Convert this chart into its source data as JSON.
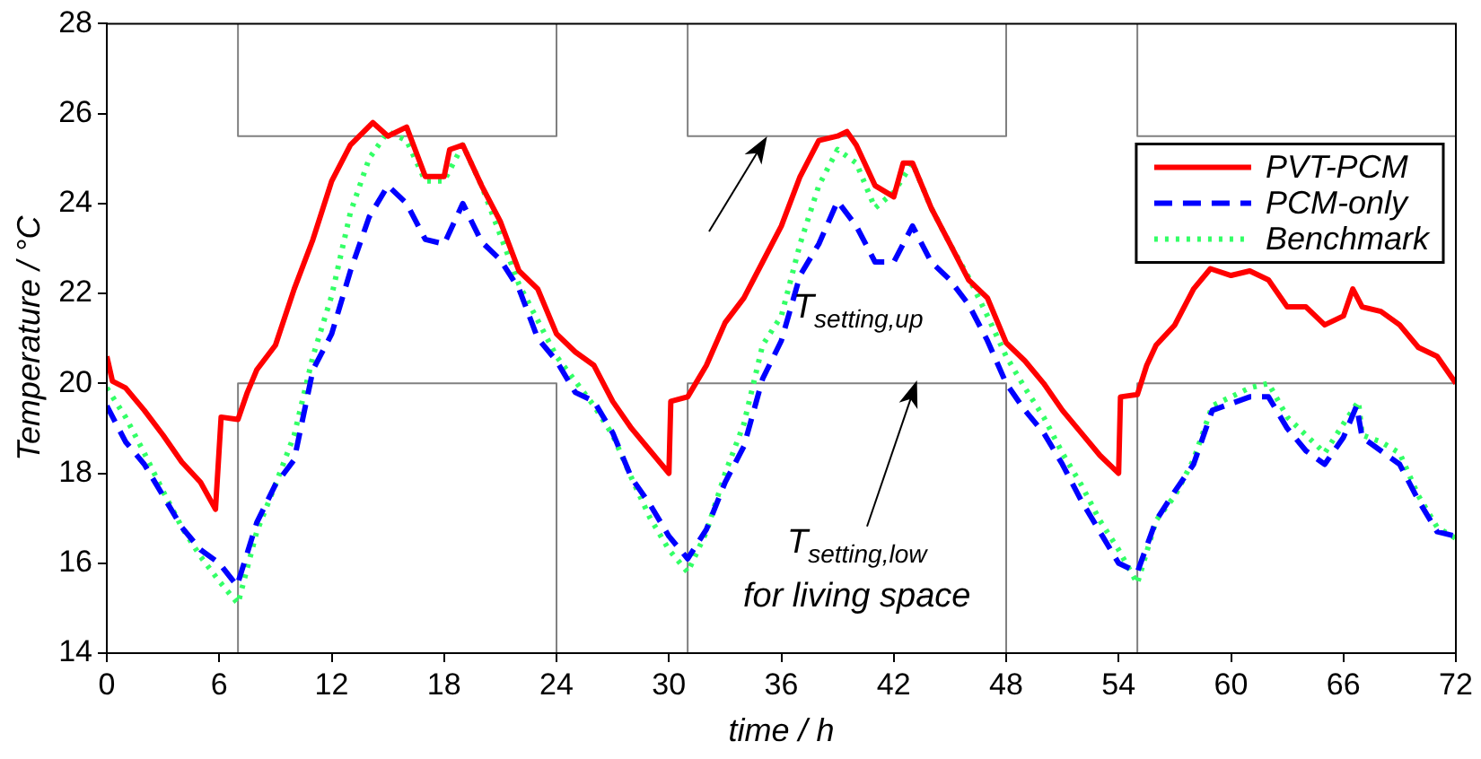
{
  "chart_data": {
    "type": "line",
    "xlabel": "time / h",
    "ylabel": "Temperature / °C",
    "xlim": [
      0,
      72
    ],
    "xticks": [
      0,
      6,
      12,
      18,
      24,
      30,
      36,
      42,
      48,
      54,
      60,
      66,
      72
    ],
    "ylim": [
      14,
      28
    ],
    "yticks": [
      14,
      16,
      18,
      20,
      22,
      24,
      26,
      28
    ],
    "legend": "top right",
    "series": [
      {
        "name": "PVT-PCM",
        "color": "#ff0000",
        "line_style": "solid",
        "x": [
          0,
          0.3,
          1,
          2,
          3,
          4,
          5,
          5.8,
          6.1,
          7,
          7.5,
          8,
          9,
          10,
          11,
          12,
          13,
          14.2,
          15,
          16,
          17,
          18,
          18.3,
          19,
          20,
          21,
          22,
          23,
          24,
          25,
          26,
          27,
          28,
          29,
          30,
          30.1,
          31,
          32,
          33,
          34,
          35,
          36,
          37,
          38,
          39,
          39.5,
          40,
          41,
          42,
          42.5,
          43,
          44,
          45,
          46,
          47,
          48,
          49,
          50,
          51,
          52,
          53,
          54,
          54.1,
          55,
          55.5,
          56,
          57,
          58,
          58.9,
          60,
          61,
          62,
          63,
          64,
          65,
          66,
          66.5,
          67,
          68,
          69,
          70,
          71,
          72
        ],
        "values": [
          20.6,
          20.05,
          19.9,
          19.4,
          18.85,
          18.25,
          17.8,
          17.2,
          19.25,
          19.2,
          19.8,
          20.3,
          20.85,
          22.1,
          23.2,
          24.5,
          25.3,
          25.8,
          25.5,
          25.7,
          24.6,
          24.6,
          25.2,
          25.3,
          24.4,
          23.6,
          22.5,
          22.1,
          21.1,
          20.7,
          20.4,
          19.6,
          19.0,
          18.5,
          18.0,
          19.6,
          19.7,
          20.4,
          21.35,
          21.9,
          22.7,
          23.5,
          24.6,
          25.4,
          25.5,
          25.6,
          25.3,
          24.4,
          24.15,
          24.9,
          24.9,
          23.9,
          23.1,
          22.3,
          21.9,
          20.9,
          20.5,
          20.0,
          19.4,
          18.9,
          18.4,
          18.0,
          19.7,
          19.75,
          20.4,
          20.85,
          21.3,
          22.1,
          22.55,
          22.4,
          22.5,
          22.3,
          21.7,
          21.7,
          21.3,
          21.5,
          22.1,
          21.7,
          21.6,
          21.3,
          20.8,
          20.6,
          20.0
        ]
      },
      {
        "name": "PCM-only",
        "color": "#0000ff",
        "line_style": "dashed",
        "x": [
          0,
          1,
          2,
          3,
          4,
          5,
          6,
          6.95,
          8,
          9,
          10,
          11,
          12,
          13,
          14,
          15,
          16,
          17,
          18,
          19,
          20,
          21,
          22,
          23,
          24,
          25,
          26,
          27,
          28,
          29,
          30,
          31,
          32,
          33,
          34,
          35,
          36,
          37,
          38,
          39,
          40,
          41,
          42,
          43,
          44,
          45,
          46,
          47,
          48,
          49,
          50,
          51,
          52,
          53,
          54,
          55,
          56,
          57,
          58,
          59,
          60,
          61,
          62,
          63,
          64,
          65,
          66,
          66.7,
          67,
          68,
          69,
          70,
          71,
          72
        ],
        "values": [
          19.5,
          18.7,
          18.2,
          17.5,
          16.8,
          16.3,
          16.0,
          15.5,
          16.9,
          17.75,
          18.3,
          20.3,
          21.1,
          22.5,
          23.7,
          24.4,
          24.0,
          23.2,
          23.1,
          24.0,
          23.15,
          22.75,
          22.1,
          21.0,
          20.5,
          19.8,
          19.6,
          18.9,
          17.9,
          17.3,
          16.6,
          16.1,
          16.75,
          17.8,
          18.6,
          20.1,
          20.95,
          22.4,
          23.1,
          24.05,
          23.5,
          22.7,
          22.7,
          23.5,
          22.7,
          22.3,
          21.75,
          20.95,
          20.0,
          19.4,
          18.9,
          18.2,
          17.4,
          16.7,
          16.0,
          15.8,
          16.95,
          17.6,
          18.2,
          19.4,
          19.55,
          19.7,
          19.7,
          19.0,
          18.5,
          18.2,
          18.8,
          19.5,
          18.8,
          18.5,
          18.2,
          17.4,
          16.7,
          16.6
        ]
      },
      {
        "name": "Benchmark",
        "color": "#33ff66",
        "line_style": "dotted",
        "x": [
          0,
          1,
          2,
          3,
          4,
          5,
          6,
          7,
          8,
          9,
          10,
          11,
          12,
          13,
          14,
          15,
          16,
          17,
          18,
          19,
          20,
          21,
          22,
          23,
          24,
          25,
          26,
          27,
          28,
          29,
          30,
          31,
          32,
          33,
          34,
          35,
          36,
          37,
          38,
          39,
          40,
          41,
          42,
          43,
          44,
          45,
          46,
          47,
          48,
          49,
          50,
          51,
          52,
          53,
          54,
          55,
          56,
          57,
          58,
          59,
          60,
          61,
          62,
          63,
          64,
          65,
          66,
          66.8,
          67,
          68,
          69,
          70,
          71,
          72
        ],
        "values": [
          19.9,
          19.25,
          18.45,
          17.6,
          16.8,
          16.15,
          15.6,
          15.1,
          16.7,
          17.75,
          18.85,
          20.6,
          21.95,
          23.8,
          25.0,
          25.6,
          25.4,
          24.5,
          24.5,
          25.3,
          24.4,
          23.3,
          22.2,
          21.4,
          20.6,
          20.05,
          19.5,
          18.85,
          17.9,
          17.0,
          16.3,
          15.8,
          16.7,
          18.0,
          19.1,
          20.85,
          21.5,
          23.1,
          24.4,
          25.2,
          24.9,
          23.9,
          24.25,
          24.9,
          23.9,
          23.1,
          22.35,
          21.5,
          20.6,
          19.9,
          19.25,
          18.45,
          17.75,
          16.95,
          16.3,
          15.55,
          16.95,
          17.5,
          18.3,
          19.5,
          19.7,
          19.9,
          20.0,
          19.25,
          18.85,
          18.45,
          19.1,
          19.6,
          18.85,
          18.7,
          18.45,
          17.5,
          16.8,
          16.55
        ]
      },
      {
        "color": "#808080",
        "line_style": "solid",
        "x": [
          7,
          7,
          24,
          24,
          27,
          31,
          31,
          48,
          48,
          51,
          55,
          55,
          72
        ],
        "values": [
          28,
          25.5,
          25.5,
          28,
          null,
          28,
          25.5,
          25.5,
          28,
          null,
          28,
          25.5,
          25.5
        ]
      },
      {
        "color": "#808080",
        "line_style": "solid",
        "x": [
          7,
          7,
          24,
          24,
          27,
          31,
          31,
          48,
          48,
          51,
          55,
          55,
          72
        ],
        "values": [
          14,
          20,
          20,
          14,
          null,
          14,
          20,
          20,
          14,
          null,
          14,
          20,
          20
        ]
      }
    ],
    "annotations": [
      "T$_{setting,up}$",
      "T$_{setting,low}$\nfor living space"
    ]
  }
}
